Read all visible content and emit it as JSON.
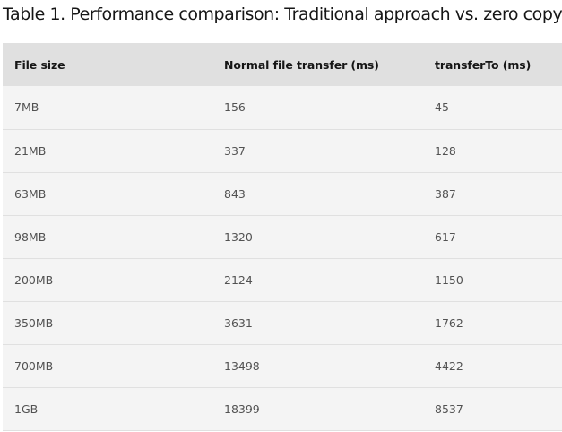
{
  "caption": "Table 1. Performance comparison: Traditional approach vs. zero copy",
  "table": {
    "headers": [
      "File size",
      "Normal file transfer (ms)",
      "transferTo (ms)"
    ],
    "rows": [
      [
        "7MB",
        "156",
        "45"
      ],
      [
        "21MB",
        "337",
        "128"
      ],
      [
        "63MB",
        "843",
        "387"
      ],
      [
        "98MB",
        "1320",
        "617"
      ],
      [
        "200MB",
        "2124",
        "1150"
      ],
      [
        "350MB",
        "3631",
        "1762"
      ],
      [
        "700MB",
        "13498",
        "4422"
      ],
      [
        "1GB",
        "18399",
        "8537"
      ]
    ]
  }
}
